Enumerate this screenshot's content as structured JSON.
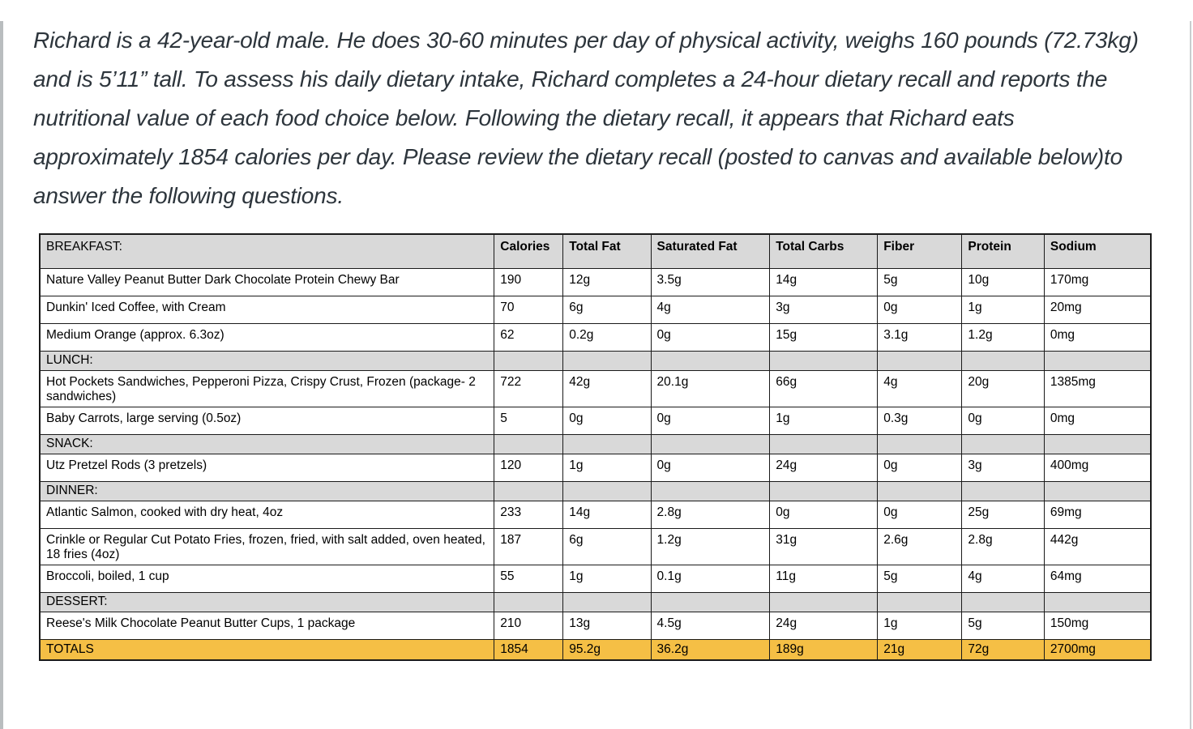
{
  "intro": {
    "text": "Richard is a 42-year-old male. He does 30-60 minutes per day of physical activity, weighs 160 pounds (72.73kg) and is 5’11” tall. To assess his daily dietary intake, Richard completes a 24-hour dietary recall and reports the nutritional value of each food choice below. Following the dietary recall, it appears that Richard eats approximately 1854 calories per day. Please review the dietary recall (posted to canvas and available below)to answer the following questions."
  },
  "table": {
    "columns": [
      "BREAKFAST:",
      "Calories",
      "Total Fat",
      "Saturated Fat",
      "Total Carbs",
      "Fiber",
      "Protein",
      "Sodium"
    ],
    "rows": [
      {
        "type": "item",
        "cells": [
          "Nature Valley Peanut Butter Dark Chocolate Protein Chewy Bar",
          "190",
          "12g",
          "3.5g",
          "14g",
          "5g",
          "10g",
          "170mg"
        ]
      },
      {
        "type": "item",
        "cells": [
          "Dunkin' Iced Coffee, with Cream",
          "70",
          "6g",
          "4g",
          "3g",
          "0g",
          "1g",
          "20mg"
        ]
      },
      {
        "type": "item",
        "cells": [
          "Medium Orange (approx. 6.3oz)",
          "62",
          "0.2g",
          "0g",
          "15g",
          "3.1g",
          "1.2g",
          "0mg"
        ]
      },
      {
        "type": "section",
        "cells": [
          "LUNCH:",
          "",
          "",
          "",
          "",
          "",
          "",
          ""
        ]
      },
      {
        "type": "item",
        "cells": [
          "Hot Pockets Sandwiches, Pepperoni Pizza, Crispy Crust, Frozen (package- 2 sandwiches)",
          "722",
          "42g",
          "20.1g",
          "66g",
          "4g",
          "20g",
          "1385mg"
        ]
      },
      {
        "type": "item",
        "cells": [
          "Baby Carrots, large serving (0.5oz)",
          "5",
          "0g",
          "0g",
          "1g",
          "0.3g",
          "0g",
          "0mg"
        ]
      },
      {
        "type": "section",
        "cells": [
          "SNACK:",
          "",
          "",
          "",
          "",
          "",
          "",
          ""
        ]
      },
      {
        "type": "item",
        "cells": [
          "Utz Pretzel Rods (3 pretzels)",
          "120",
          "1g",
          "0g",
          "24g",
          "0g",
          "3g",
          "400mg"
        ]
      },
      {
        "type": "section",
        "cells": [
          "DINNER:",
          "",
          "",
          "",
          "",
          "",
          "",
          ""
        ]
      },
      {
        "type": "item",
        "cells": [
          "Atlantic Salmon, cooked with dry heat, 4oz",
          "233",
          "14g",
          "2.8g",
          "0g",
          "0g",
          "25g",
          "69mg"
        ]
      },
      {
        "type": "item",
        "cells": [
          "Crinkle or Regular Cut Potato Fries, frozen, fried, with salt added, oven heated, 18 fries (4oz)",
          "187",
          "6g",
          "1.2g",
          "31g",
          "2.6g",
          "2.8g",
          "442g"
        ]
      },
      {
        "type": "item",
        "cells": [
          "Broccoli, boiled, 1 cup",
          "55",
          "1g",
          "0.1g",
          "11g",
          "5g",
          "4g",
          "64mg"
        ]
      },
      {
        "type": "section",
        "cells": [
          "DESSERT:",
          "",
          "",
          "",
          "",
          "",
          "",
          ""
        ]
      },
      {
        "type": "item",
        "cells": [
          "Reese's Milk Chocolate Peanut Butter Cups, 1 package",
          "210",
          "13g",
          "4.5g",
          "24g",
          "1g",
          "5g",
          "150mg"
        ]
      },
      {
        "type": "totals",
        "cells": [
          "TOTALS",
          "1854",
          "95.2g",
          "36.2g",
          "189g",
          "21g",
          "72g",
          "2700mg"
        ]
      }
    ],
    "colors": {
      "section_bg": "#d9d9d9",
      "totals_bg": "#f5bf45",
      "border": "#1a1a1a",
      "intro_text": "#2d353c"
    }
  }
}
